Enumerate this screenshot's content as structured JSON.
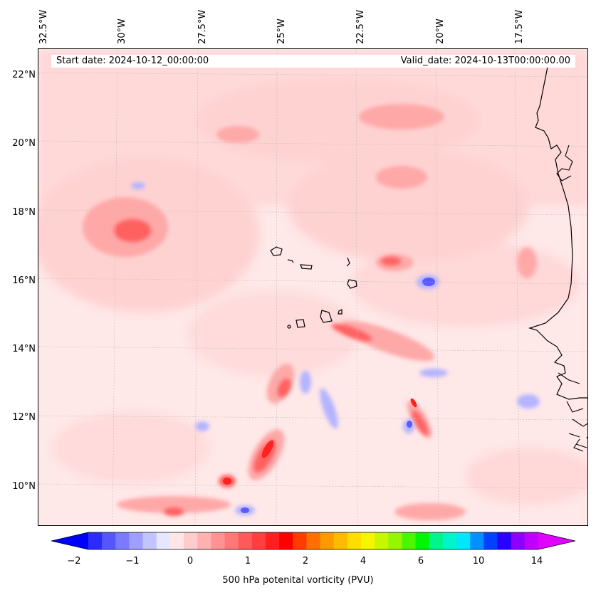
{
  "map": {
    "start_date": "Start date: 2024-10-12_00:00:00",
    "valid_date": "Valid_date: 2024-10-13T00:00:00.00",
    "lon_labels": [
      "32.5°W",
      "30°W",
      "27.5°W",
      "25°W",
      "22.5°W",
      "20°W",
      "17.5°W"
    ],
    "lat_labels": [
      "22°N",
      "20°N",
      "18°N",
      "16°N",
      "14°N",
      "12°N",
      "10°N"
    ],
    "background_color": "#ffe8e8",
    "coastline_color": "#000000",
    "region": "Cape Verde Islands and West African coast"
  },
  "colorbar": {
    "label": "500 hPa potenital vorticity (PVU)",
    "tick_labels": [
      "−2",
      "−1",
      "0",
      "1",
      "2",
      "4",
      "6",
      "10",
      "14"
    ],
    "colors": [
      "#0000ff",
      "#2b2bff",
      "#5656ff",
      "#7b7bff",
      "#9f9fff",
      "#c3c3ff",
      "#e6e6ff",
      "#ffe6e6",
      "#ffcccc",
      "#ffb0b0",
      "#ff9393",
      "#ff7777",
      "#ff5a5a",
      "#ff3e3e",
      "#ff1f1f",
      "#ff0000",
      "#ff3c00",
      "#ff6e00",
      "#ff9900",
      "#ffbb00",
      "#ffdd00",
      "#f5f500",
      "#c8f500",
      "#96f500",
      "#4cf500",
      "#00f500",
      "#00f58c",
      "#00f5c8",
      "#00e6ff",
      "#0090ff",
      "#0040ff",
      "#2a00ff",
      "#8c00ff",
      "#c000ff",
      "#e200ff"
    ]
  }
}
